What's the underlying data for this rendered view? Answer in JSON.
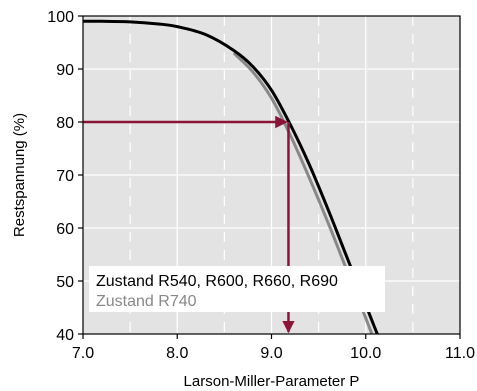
{
  "chart_data": {
    "type": "line",
    "xlabel": "Larson-Miller-Parameter P",
    "ylabel": "Restspannung (%)",
    "xlim": [
      7.0,
      11.0
    ],
    "ylim": [
      40,
      100
    ],
    "xticks": [
      "7.0",
      "8.0",
      "9.0",
      "10.0",
      "11.0"
    ],
    "yticks": [
      "40",
      "50",
      "60",
      "70",
      "80",
      "90",
      "100"
    ],
    "grid": true,
    "background": "#e3e3e3",
    "legend_position": "bottom-left",
    "series": [
      {
        "name": "Zustand R540, R600, R660, R690",
        "color": "#000000",
        "x": [
          7.0,
          7.2,
          7.5,
          7.8,
          8.0,
          8.3,
          8.6,
          8.8,
          9.0,
          9.2,
          9.4,
          9.6,
          9.8,
          10.0,
          10.2
        ],
        "y": [
          99.0,
          99.0,
          98.9,
          98.5,
          98.0,
          96.5,
          93.5,
          90.5,
          86.0,
          79.5,
          72.0,
          63.5,
          54.5,
          45.5,
          36.5
        ]
      },
      {
        "name": "Zustand R740",
        "color": "#888888",
        "x": [
          8.6,
          8.8,
          9.0,
          9.2,
          9.4,
          9.6,
          9.8,
          10.0,
          10.15
        ],
        "y": [
          93.0,
          89.5,
          84.5,
          77.5,
          69.5,
          61.0,
          52.0,
          43.0,
          36.0
        ]
      }
    ],
    "annotation": {
      "color": "#8b1538",
      "from_y": 80,
      "to_x": 9.18
    }
  }
}
